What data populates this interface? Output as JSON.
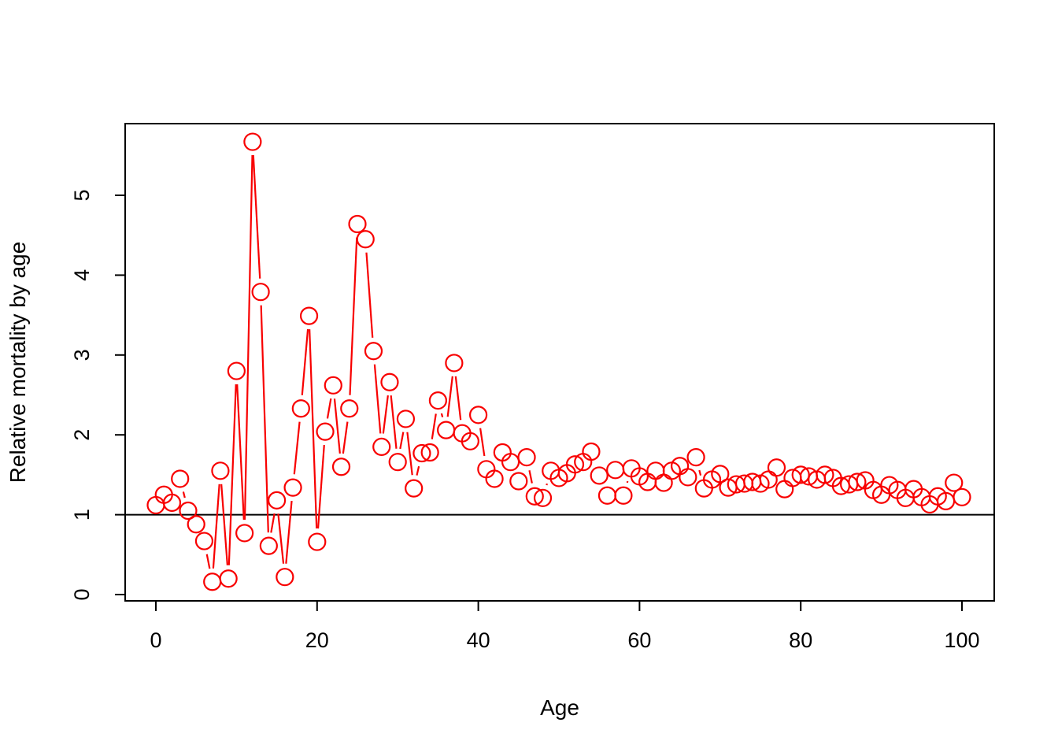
{
  "figure": {
    "background": "#ffffff",
    "frame_color": "#000000"
  },
  "chart_data": {
    "type": "line",
    "style": "r-base-type-b-open-circles",
    "title": "",
    "xlabel": "Age",
    "ylabel": "Relative mortality by age",
    "x_ticks": [
      0,
      20,
      40,
      60,
      80,
      100
    ],
    "y_ticks": [
      0,
      1,
      2,
      3,
      4,
      5
    ],
    "xlim": [
      -4,
      104
    ],
    "ylim": [
      0,
      5.9
    ],
    "grid": "off",
    "legend": "none",
    "reference_line_y": 1,
    "reference_line_color": "#000000",
    "series_color": "#f80000",
    "marker": "open-circle",
    "x": [
      0,
      1,
      2,
      3,
      4,
      5,
      6,
      7,
      8,
      9,
      10,
      11,
      12,
      13,
      14,
      15,
      16,
      17,
      18,
      19,
      20,
      21,
      22,
      23,
      24,
      25,
      26,
      27,
      28,
      29,
      30,
      31,
      32,
      33,
      34,
      35,
      36,
      37,
      38,
      39,
      40,
      41,
      42,
      43,
      44,
      45,
      46,
      47,
      48,
      49,
      50,
      51,
      52,
      53,
      54,
      55,
      56,
      57,
      58,
      59,
      60,
      61,
      62,
      63,
      64,
      65,
      66,
      67,
      68,
      69,
      70,
      71,
      72,
      73,
      74,
      75,
      76,
      77,
      78,
      79,
      80,
      81,
      82,
      83,
      84,
      85,
      86,
      87,
      88,
      89,
      90,
      91,
      92,
      93,
      94,
      95,
      96,
      97,
      98,
      99,
      100
    ],
    "values": [
      1.12,
      1.25,
      1.15,
      1.45,
      1.05,
      0.88,
      0.67,
      0.16,
      1.55,
      0.2,
      2.8,
      0.77,
      5.67,
      3.79,
      0.61,
      1.18,
      0.22,
      1.34,
      2.33,
      3.49,
      0.66,
      2.04,
      2.62,
      1.6,
      2.33,
      4.64,
      4.45,
      3.05,
      1.85,
      2.66,
      1.66,
      2.2,
      1.33,
      1.77,
      1.78,
      2.43,
      2.06,
      2.9,
      2.02,
      1.92,
      2.25,
      1.57,
      1.45,
      1.78,
      1.66,
      1.42,
      1.72,
      1.23,
      1.21,
      1.55,
      1.46,
      1.52,
      1.63,
      1.66,
      1.79,
      1.49,
      1.24,
      1.56,
      1.24,
      1.58,
      1.48,
      1.41,
      1.55,
      1.4,
      1.55,
      1.61,
      1.47,
      1.72,
      1.33,
      1.44,
      1.51,
      1.34,
      1.38,
      1.39,
      1.41,
      1.39,
      1.44,
      1.59,
      1.32,
      1.46,
      1.5,
      1.48,
      1.44,
      1.5,
      1.46,
      1.36,
      1.38,
      1.41,
      1.43,
      1.31,
      1.25,
      1.37,
      1.31,
      1.21,
      1.32,
      1.22,
      1.13,
      1.23,
      1.17,
      1.4,
      1.22
    ]
  }
}
